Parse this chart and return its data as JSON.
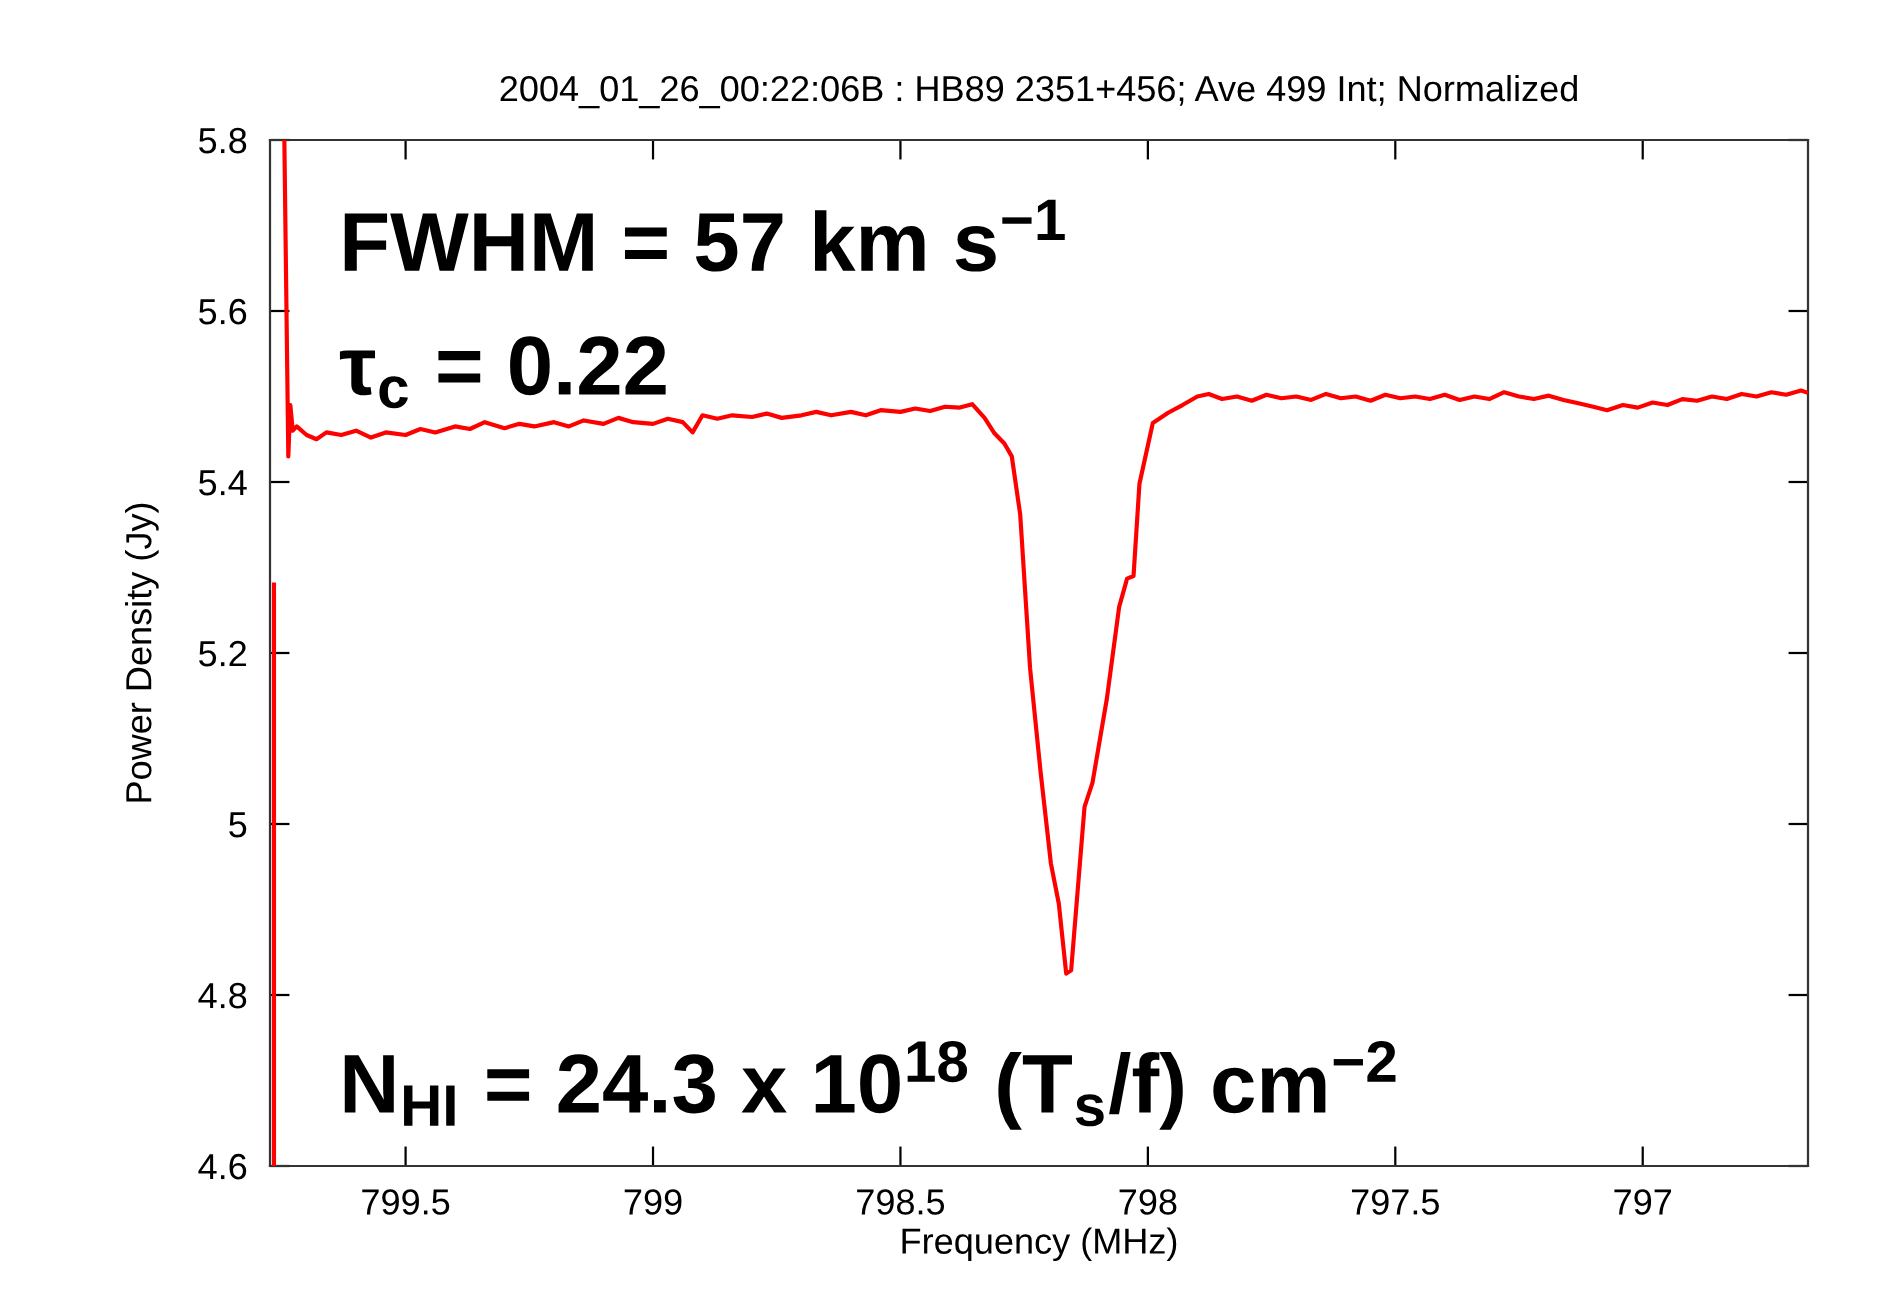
{
  "chart_data": {
    "type": "line",
    "title": "2004_01_26_00:22:06B : HB89 2351+456; Ave 499 Int; Normalized",
    "xlabel": "Frequency (MHz)",
    "ylabel": "Power Density (Jy)",
    "annotations": [
      "FWHM = 57 km s$^{−1}$",
      "τ$_{c}$ = 0.22",
      "N$_{HI}$ = 24.3 x 10$^{18}$ (T$_{s}$/f) cm$^{−2}$"
    ],
    "series": [
      {
        "color": "#ff0000",
        "x": [
          799.766,
          799.766,
          799.76,
          799.745,
          799.737,
          799.733,
          799.728,
          799.72,
          799.7,
          799.68,
          799.66,
          799.63,
          799.6,
          799.57,
          799.54,
          799.5,
          799.47,
          799.44,
          799.4,
          799.37,
          799.34,
          799.3,
          799.27,
          799.24,
          799.2,
          799.17,
          799.14,
          799.1,
          799.07,
          799.04,
          799.0,
          798.97,
          798.94,
          798.92,
          798.9,
          798.87,
          798.84,
          798.8,
          798.77,
          798.74,
          798.7,
          798.67,
          798.64,
          798.6,
          798.57,
          798.54,
          798.5,
          798.47,
          798.44,
          798.41,
          798.38,
          798.355,
          798.33,
          798.31,
          798.29,
          798.275,
          798.258,
          798.238,
          798.217,
          798.196,
          798.18,
          798.165,
          798.155,
          798.128,
          798.112,
          798.083,
          798.058,
          798.042,
          798.029,
          798.017,
          797.99,
          797.959,
          797.93,
          797.9,
          797.877,
          797.85,
          797.82,
          797.79,
          797.76,
          797.73,
          797.7,
          797.67,
          797.64,
          797.61,
          797.58,
          797.55,
          797.52,
          797.49,
          797.46,
          797.43,
          797.4,
          797.37,
          797.34,
          797.31,
          797.28,
          797.25,
          797.22,
          797.19,
          797.16,
          797.13,
          797.1,
          797.072,
          797.04,
          797.01,
          796.98,
          796.95,
          796.92,
          796.89,
          796.86,
          796.83,
          796.8,
          796.77,
          796.74,
          796.71,
          796.68,
          796.67
        ],
        "values": [
          4.6,
          5.28,
          null,
          5.8,
          5.43,
          5.49,
          5.46,
          5.465,
          5.455,
          5.45,
          5.458,
          5.455,
          5.46,
          5.452,
          5.458,
          5.455,
          5.462,
          5.458,
          5.465,
          5.462,
          5.47,
          5.463,
          5.468,
          5.465,
          5.47,
          5.465,
          5.472,
          5.468,
          5.475,
          5.47,
          5.468,
          5.474,
          5.47,
          5.458,
          5.478,
          5.474,
          5.478,
          5.476,
          5.48,
          5.475,
          5.478,
          5.482,
          5.478,
          5.482,
          5.478,
          5.484,
          5.482,
          5.486,
          5.483,
          5.488,
          5.487,
          5.491,
          5.475,
          5.457,
          5.445,
          5.43,
          5.362,
          5.182,
          5.062,
          4.954,
          4.907,
          4.825,
          4.829,
          5.02,
          5.048,
          5.146,
          5.254,
          5.287,
          5.29,
          5.398,
          5.469,
          5.481,
          5.49,
          5.5,
          5.503,
          5.497,
          5.5,
          5.495,
          5.502,
          5.498,
          5.5,
          5.496,
          5.503,
          5.498,
          5.5,
          5.495,
          5.502,
          5.498,
          5.5,
          5.497,
          5.502,
          5.496,
          5.5,
          5.497,
          5.505,
          5.5,
          5.497,
          5.501,
          5.496,
          5.492,
          5.488,
          5.484,
          5.49,
          5.487,
          5.493,
          5.49,
          5.497,
          5.495,
          5.5,
          5.497,
          5.503,
          5.5,
          5.505,
          5.502,
          5.507,
          5.505
        ]
      }
    ],
    "xlim": [
      799.774,
      796.666
    ],
    "xticks": [
      799.5,
      799,
      798.5,
      798,
      797.5,
      797
    ],
    "ylim": [
      4.6,
      5.8
    ],
    "yticks": [
      4.6,
      4.8,
      5,
      5.2,
      5.4,
      5.6,
      5.8
    ],
    "grid": false,
    "legend": false,
    "marker": "none",
    "line_style": "solid"
  }
}
